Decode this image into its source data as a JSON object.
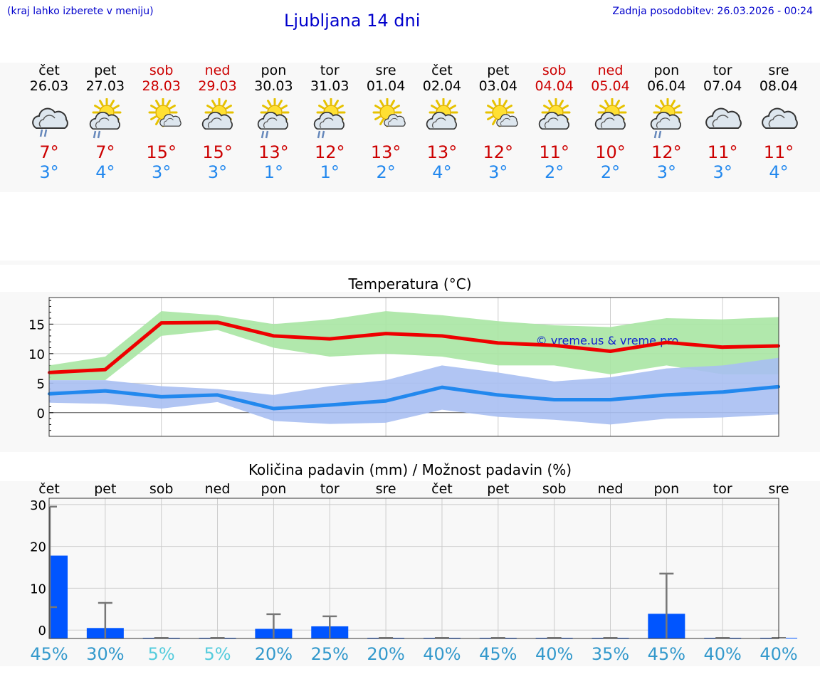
{
  "header": {
    "hint": "(kraj lahko izberete v meniju)",
    "title": "Ljubljana 14 dni",
    "updated": "Zadnja posodobitev: 26.03.2026 - 00:24"
  },
  "colors": {
    "max": "#ee0000",
    "min": "#2288ee",
    "bar": "#0055ff",
    "maxband": "#a8e6a3",
    "minband": "#a9bff2",
    "pct": "#3399cc",
    "pctlow": "#55ccdd"
  },
  "days": [
    {
      "name": "čet",
      "date": "26.03",
      "weekend": false,
      "icon": "cloud-rain-icon",
      "tmax": "7°",
      "tmin": "3°"
    },
    {
      "name": "pet",
      "date": "27.03",
      "weekend": false,
      "icon": "sun-cloud-rain-icon",
      "tmax": "7°",
      "tmin": "4°"
    },
    {
      "name": "sob",
      "date": "28.03",
      "weekend": true,
      "icon": "sun-small-cloud-icon",
      "tmax": "15°",
      "tmin": "3°"
    },
    {
      "name": "ned",
      "date": "29.03",
      "weekend": true,
      "icon": "sun-cloud-icon",
      "tmax": "15°",
      "tmin": "3°"
    },
    {
      "name": "pon",
      "date": "30.03",
      "weekend": false,
      "icon": "sun-cloud-rain-icon",
      "tmax": "13°",
      "tmin": "1°"
    },
    {
      "name": "tor",
      "date": "31.03",
      "weekend": false,
      "icon": "sun-cloud-rain-icon",
      "tmax": "12°",
      "tmin": "1°"
    },
    {
      "name": "sre",
      "date": "01.04",
      "weekend": false,
      "icon": "sun-small-cloud-icon",
      "tmax": "13°",
      "tmin": "2°"
    },
    {
      "name": "čet",
      "date": "02.04",
      "weekend": false,
      "icon": "sun-cloud-icon",
      "tmax": "13°",
      "tmin": "4°"
    },
    {
      "name": "pet",
      "date": "03.04",
      "weekend": false,
      "icon": "sun-small-cloud-icon",
      "tmax": "12°",
      "tmin": "3°"
    },
    {
      "name": "sob",
      "date": "04.04",
      "weekend": true,
      "icon": "sun-cloud-icon",
      "tmax": "11°",
      "tmin": "2°"
    },
    {
      "name": "ned",
      "date": "05.04",
      "weekend": true,
      "icon": "sun-cloud-icon",
      "tmax": "10°",
      "tmin": "2°"
    },
    {
      "name": "pon",
      "date": "06.04",
      "weekend": false,
      "icon": "sun-cloud-rain-icon",
      "tmax": "12°",
      "tmin": "3°"
    },
    {
      "name": "tor",
      "date": "07.04",
      "weekend": false,
      "icon": "cloud-icon",
      "tmax": "11°",
      "tmin": "3°"
    },
    {
      "name": "sre",
      "date": "08.04",
      "weekend": false,
      "icon": "cloud-icon",
      "tmax": "11°",
      "tmin": "4°"
    }
  ],
  "chart_data": [
    {
      "type": "line",
      "title": "Temperatura (°C)",
      "ylim": [
        -4,
        19.5
      ],
      "yticks": [
        0,
        5,
        10,
        15
      ],
      "x": [
        0,
        1,
        2,
        3,
        4,
        5,
        6,
        7,
        8,
        9,
        10,
        11,
        12,
        13
      ],
      "watermark": "© vreme.us & vreme.pro",
      "series": [
        {
          "name": "max",
          "values": [
            6.8,
            7.3,
            15.2,
            15.3,
            13.0,
            12.5,
            13.4,
            13.0,
            11.8,
            11.4,
            10.4,
            11.9,
            11.1,
            11.3
          ],
          "band_low": [
            5.5,
            5.5,
            13.0,
            14.0,
            11.0,
            9.5,
            10.0,
            9.5,
            8.0,
            8.0,
            6.5,
            8.0,
            6.5,
            6.5
          ],
          "band_high": [
            8.0,
            9.5,
            17.2,
            16.5,
            15.0,
            15.8,
            17.2,
            16.5,
            15.5,
            14.8,
            14.5,
            16.0,
            15.8,
            16.2
          ]
        },
        {
          "name": "min",
          "values": [
            3.2,
            3.7,
            2.7,
            3.0,
            0.7,
            1.3,
            2.0,
            4.3,
            3.0,
            2.2,
            2.2,
            3.0,
            3.5,
            4.4
          ],
          "band_low": [
            1.7,
            1.5,
            0.7,
            1.8,
            -1.4,
            -1.9,
            -1.7,
            0.5,
            -0.7,
            -1.2,
            -2.0,
            -1.0,
            -0.8,
            -0.3
          ],
          "band_high": [
            5.5,
            5.5,
            4.5,
            4.0,
            3.0,
            4.5,
            5.5,
            8.0,
            6.8,
            5.3,
            6.0,
            7.5,
            8.0,
            9.3
          ]
        }
      ]
    },
    {
      "type": "bar",
      "title": "Količina padavin (mm) / Možnost padavin (%)",
      "ylim": [
        -2,
        31.5
      ],
      "yticks": [
        0,
        10,
        20,
        30
      ],
      "categories": [
        "čet",
        "pet",
        "sob",
        "ned",
        "pon",
        "tor",
        "sre",
        "čet",
        "pet",
        "sob",
        "ned",
        "pon",
        "tor",
        "sre"
      ],
      "values": [
        17.8,
        0.5,
        0,
        0,
        0.3,
        0.9,
        0,
        0,
        0,
        0,
        0,
        3.9,
        0,
        0
      ],
      "error_high": [
        29.5,
        6.5,
        0,
        0,
        3.8,
        3.3,
        0,
        0,
        0,
        0,
        0,
        13.5,
        0,
        0
      ],
      "error_low": [
        5.5,
        0,
        0,
        0,
        0,
        0,
        0,
        0,
        0,
        0,
        0,
        0,
        0,
        0
      ],
      "probability": [
        "45%",
        "30%",
        "5%",
        "5%",
        "20%",
        "25%",
        "20%",
        "40%",
        "45%",
        "40%",
        "35%",
        "45%",
        "40%",
        "40%"
      ]
    }
  ]
}
